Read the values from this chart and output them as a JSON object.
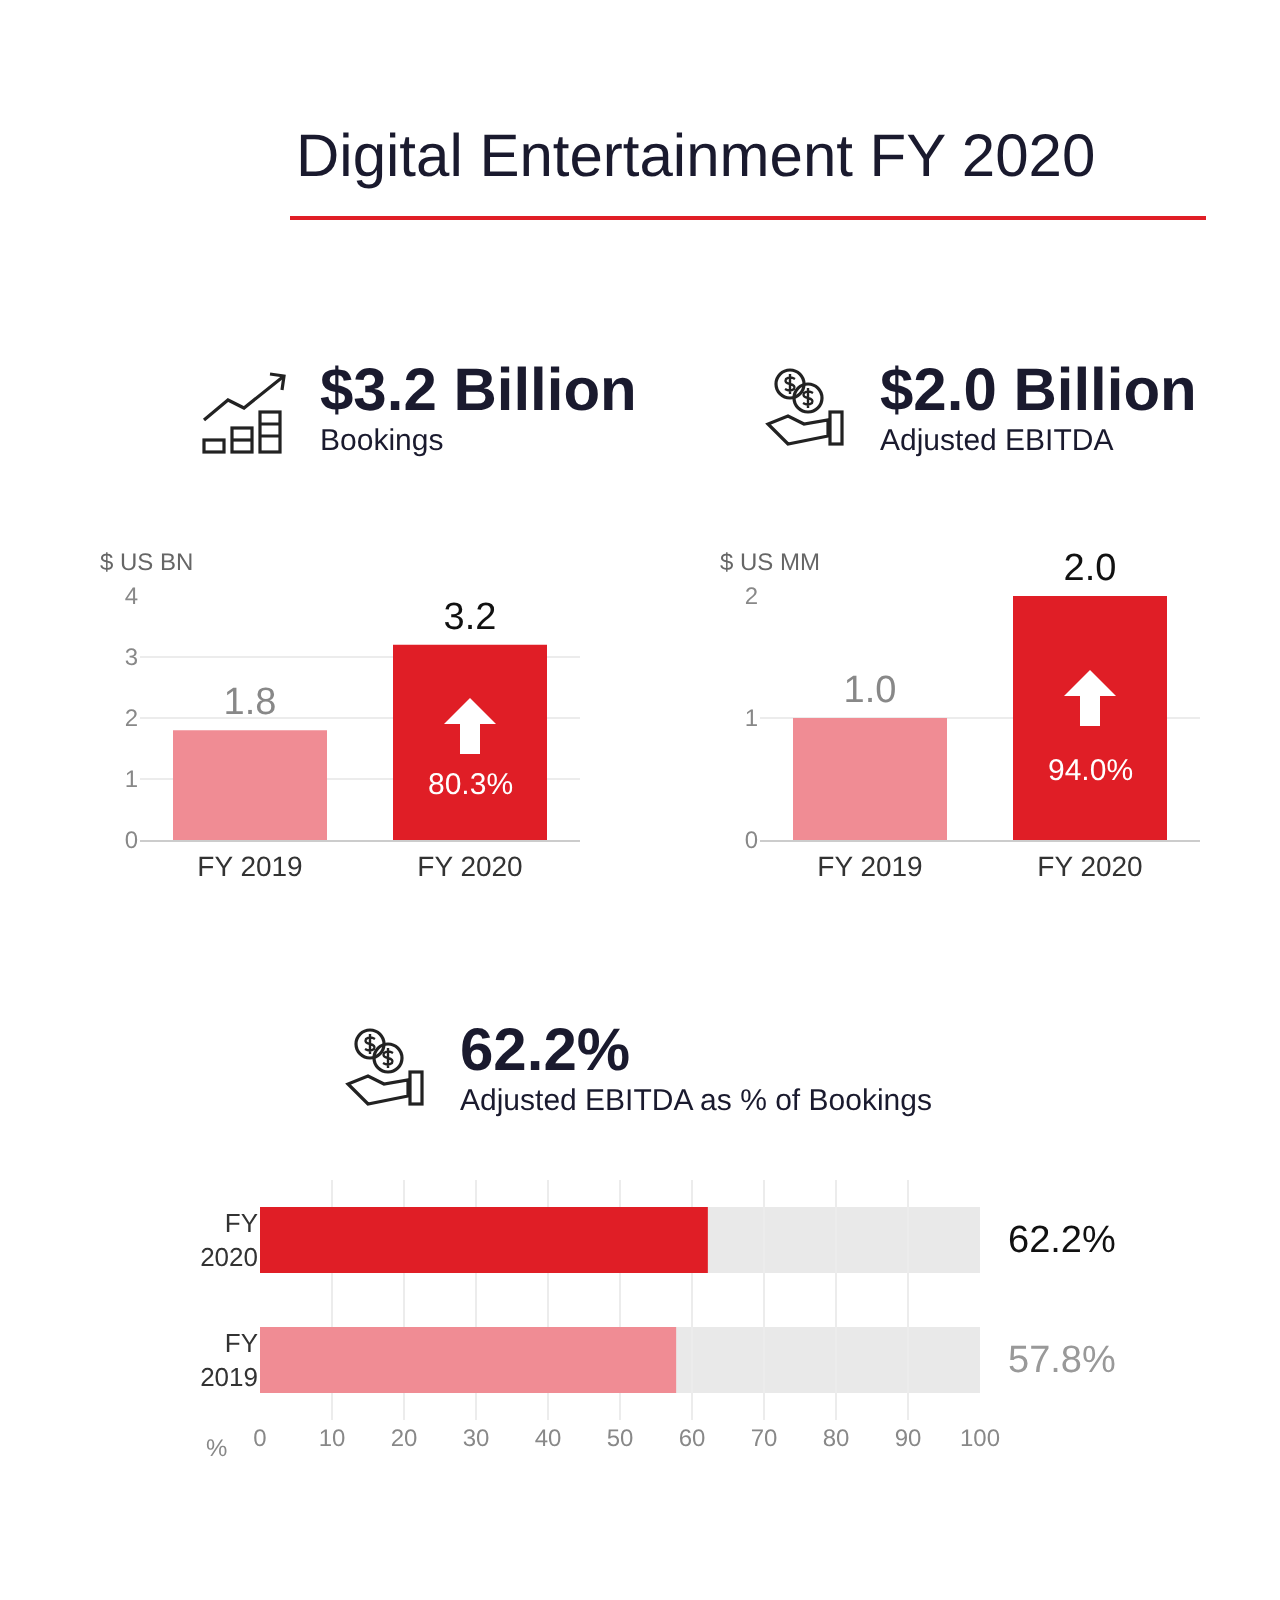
{
  "chart_data": [
    {
      "type": "other",
      "title": "Digital Entertainment FY 2020"
    },
    {
      "type": "bar",
      "title": "$3.2 Billion",
      "subtitle": "Bookings",
      "ylabel": "$ US BN",
      "categories": [
        "FY 2019",
        "FY 2020"
      ],
      "values": [
        1.8,
        3.2
      ],
      "colors": [
        "#f08c94",
        "#e01e26"
      ],
      "ylim": [
        0,
        4
      ],
      "yticks": [
        0,
        1,
        2,
        3,
        4
      ],
      "grid": "y",
      "data_labels": true,
      "annotations": [
        "80.3%"
      ]
    },
    {
      "type": "bar",
      "title": "$2.0 Billion",
      "subtitle": "Adjusted EBITDA",
      "ylabel": "$ US MM",
      "categories": [
        "FY 2019",
        "FY 2020"
      ],
      "values": [
        1.0,
        2.0
      ],
      "colors": [
        "#f08c94",
        "#e01e26"
      ],
      "ylim": [
        0,
        2
      ],
      "yticks": [
        0,
        1,
        2
      ],
      "grid": "y",
      "value_labels": [
        "1.0",
        "2.0"
      ],
      "annotations": [
        "94.0%"
      ]
    },
    {
      "type": "bar",
      "orientation": "horizontal",
      "title": "62.2%",
      "subtitle": "Adjusted EBITDA as % of Bookings",
      "xlabel": "%",
      "categories": [
        "FY 2020",
        "FY 2019"
      ],
      "values": [
        62.2,
        57.8
      ],
      "colors": [
        "#e01e26",
        "#f08c94"
      ],
      "xlim": [
        0,
        100
      ],
      "xticks": [
        0,
        10,
        20,
        30,
        40,
        50,
        60,
        70,
        80,
        90,
        100
      ],
      "grid": "x",
      "value_labels": [
        "62.2%",
        "57.8%"
      ]
    }
  ]
}
